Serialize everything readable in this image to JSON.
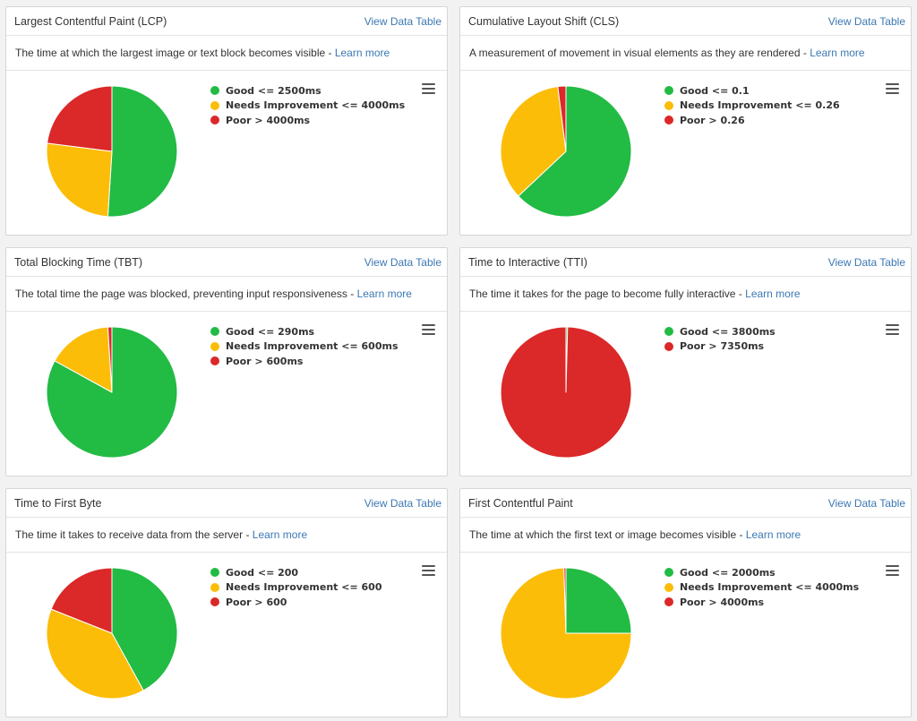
{
  "colors": {
    "good": "#22bb44",
    "needs": "#fbbd08",
    "poor": "#db2828"
  },
  "cards": [
    {
      "title": "Largest Contentful Paint (LCP)",
      "link": "View Data Table",
      "description": "The time at which the largest image or text block becomes visible - ",
      "learn_more": "Learn more",
      "chart_data": {
        "type": "pie",
        "series": [
          {
            "name": "Good <= 2500ms",
            "value": 51,
            "color": "#22bb44"
          },
          {
            "name": "Needs Improvement <= 4000ms",
            "value": 26,
            "color": "#fbbd08"
          },
          {
            "name": "Poor > 4000ms",
            "value": 23,
            "color": "#db2828"
          }
        ]
      }
    },
    {
      "title": "Cumulative Layout Shift (CLS)",
      "link": "View Data Table",
      "description": "A measurement of movement in visual elements as they are rendered - ",
      "learn_more": "Learn more",
      "chart_data": {
        "type": "pie",
        "series": [
          {
            "name": "Good <= 0.1",
            "value": 63,
            "color": "#22bb44"
          },
          {
            "name": "Needs Improvement <= 0.26",
            "value": 35,
            "color": "#fbbd08"
          },
          {
            "name": "Poor > 0.26",
            "value": 2,
            "color": "#db2828"
          }
        ]
      }
    },
    {
      "title": "Total Blocking Time (TBT)",
      "link": "View Data Table",
      "description": "The total time the page was blocked, preventing input responsiveness - ",
      "learn_more": "Learn more",
      "chart_data": {
        "type": "pie",
        "series": [
          {
            "name": "Good <= 290ms",
            "value": 83,
            "color": "#22bb44"
          },
          {
            "name": "Needs Improvement <= 600ms",
            "value": 16,
            "color": "#fbbd08"
          },
          {
            "name": "Poor > 600ms",
            "value": 1,
            "color": "#db2828"
          }
        ]
      }
    },
    {
      "title": "Time to Interactive (TTI)",
      "link": "View Data Table",
      "description": "The time it takes for the page to become fully interactive - ",
      "learn_more": "Learn more",
      "chart_data": {
        "type": "pie",
        "series": [
          {
            "name": "Good <= 3800ms",
            "value": 0.4,
            "color": "#22bb44"
          },
          {
            "name": "Poor > 7350ms",
            "value": 99.6,
            "color": "#db2828"
          }
        ]
      }
    },
    {
      "title": "Time to First Byte",
      "link": "View Data Table",
      "description": "The time it takes to receive data from the server - ",
      "learn_more": "Learn more",
      "chart_data": {
        "type": "pie",
        "series": [
          {
            "name": "Good <= 200",
            "value": 42,
            "color": "#22bb44"
          },
          {
            "name": "Needs Improvement <= 600",
            "value": 39,
            "color": "#fbbd08"
          },
          {
            "name": "Poor > 600",
            "value": 19,
            "color": "#db2828"
          }
        ]
      }
    },
    {
      "title": "First Contentful Paint",
      "link": "View Data Table",
      "description": "The time at which the first text or image becomes visible - ",
      "learn_more": "Learn more",
      "chart_data": {
        "type": "pie",
        "series": [
          {
            "name": "Good <= 2000ms",
            "value": 25,
            "color": "#22bb44"
          },
          {
            "name": "Needs Improvement <= 4000ms",
            "value": 74.5,
            "color": "#fbbd08"
          },
          {
            "name": "Poor > 4000ms",
            "value": 0.5,
            "color": "#db2828"
          }
        ]
      }
    }
  ]
}
